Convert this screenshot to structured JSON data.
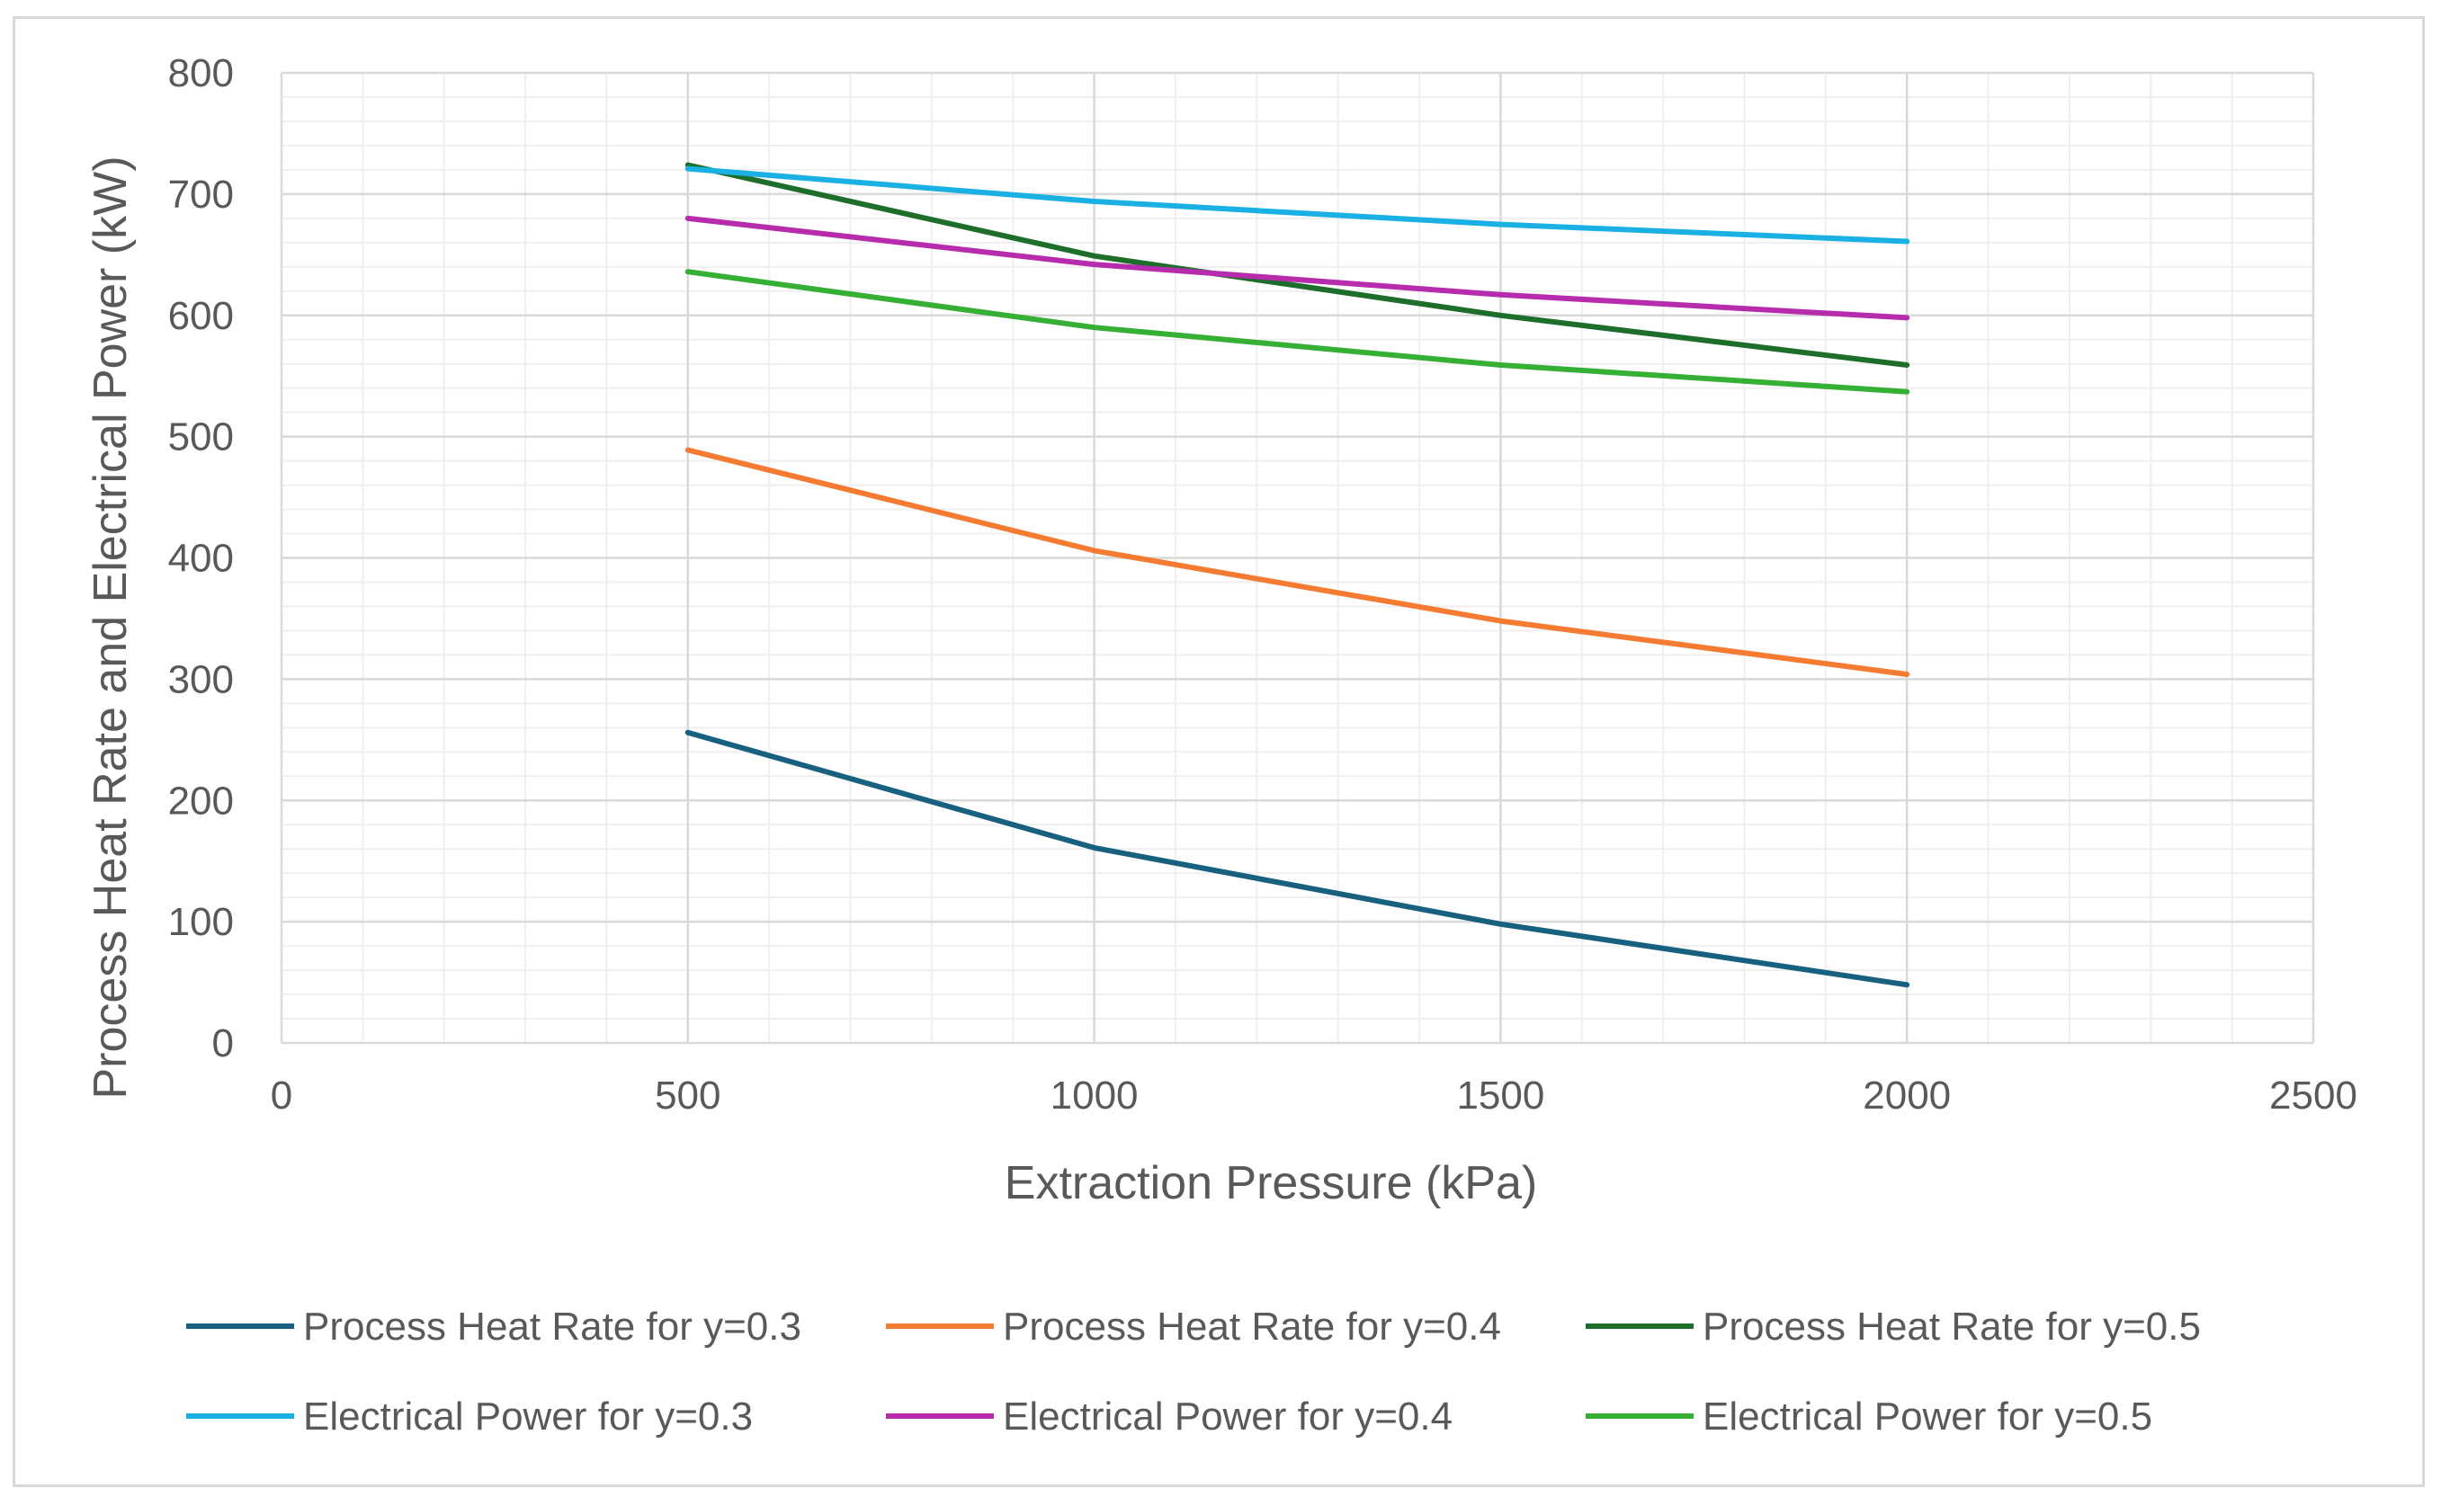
{
  "chart_data": {
    "type": "line",
    "title": "",
    "xlabel": "Extraction Pressure (kPa)",
    "ylabel": "Process Heat Rate and Electrical Power (kW)",
    "xlim": [
      0,
      2500
    ],
    "ylim": [
      0,
      800
    ],
    "x_ticks": [
      0,
      500,
      1000,
      1500,
      2000,
      2500
    ],
    "y_ticks": [
      0,
      100,
      200,
      300,
      400,
      500,
      600,
      700,
      800
    ],
    "grid": true,
    "minor_grid": true,
    "legend_position": "bottom",
    "x": [
      500,
      1000,
      1500,
      2000
    ],
    "series": [
      {
        "name": "Process Heat Rate for y=0.3",
        "color": "#17607f",
        "values": [
          256,
          161,
          98,
          48
        ]
      },
      {
        "name": "Process Heat Rate for y=0.4",
        "color": "#f57b32",
        "values": [
          489,
          406,
          348,
          304
        ]
      },
      {
        "name": "Process Heat Rate for y=0.5",
        "color": "#1e6e2b",
        "values": [
          724,
          649,
          600,
          559
        ]
      },
      {
        "name": "Electrical Power for y=0.3",
        "color": "#1ab0e3",
        "values": [
          721,
          694,
          675,
          661
        ]
      },
      {
        "name": "Electrical Power for y=0.4",
        "color": "#b62cad",
        "values": [
          680,
          642,
          617,
          598
        ]
      },
      {
        "name": "Electrical Power for y=0.5",
        "color": "#35b035",
        "values": [
          636,
          590,
          559,
          537
        ]
      }
    ]
  }
}
